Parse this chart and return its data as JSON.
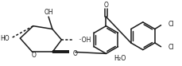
{
  "bg_color": "#ffffff",
  "line_color": "#1a1a1a",
  "line_width": 1.1,
  "figsize": [
    2.29,
    0.83
  ],
  "dpi": 100,
  "ring_O_label": "O",
  "glyc_O_label": "O",
  "HO_left": "HO",
  "OH_right_ring": "··OH",
  "OH_bottom": "OH",
  "carbonyl_O": "O",
  "Cl_top": "Cl",
  "Cl_bottom": "Cl",
  "water": "H₂O"
}
